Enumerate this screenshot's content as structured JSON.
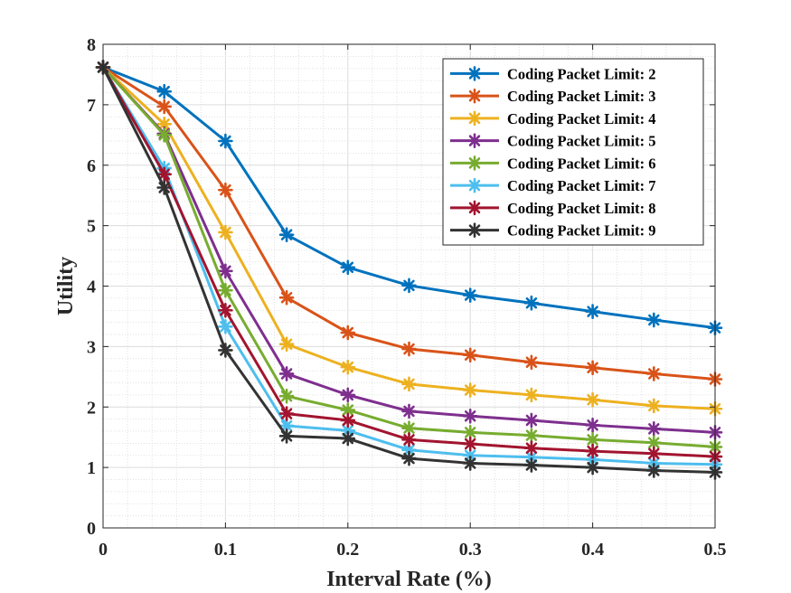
{
  "chart_data": {
    "type": "line",
    "title": "",
    "xlabel": "Interval Rate (%)",
    "ylabel": "Utility",
    "xlim": [
      0,
      0.5
    ],
    "ylim": [
      0,
      8
    ],
    "xticks": [
      0,
      0.1,
      0.2,
      0.3,
      0.4,
      0.5
    ],
    "xtick_labels": [
      "0",
      "0.1",
      "0.2",
      "0.3",
      "0.4",
      "0.5"
    ],
    "yticks": [
      0,
      1,
      2,
      3,
      4,
      5,
      6,
      7,
      8
    ],
    "ytick_labels": [
      "0",
      "1",
      "2",
      "3",
      "4",
      "5",
      "6",
      "7",
      "8"
    ],
    "grid": true,
    "minor_grid": true,
    "legend_position": "top-right",
    "marker": "asterisk",
    "x": [
      0,
      0.05,
      0.1,
      0.15,
      0.2,
      0.25,
      0.3,
      0.35,
      0.4,
      0.45,
      0.5
    ],
    "series": [
      {
        "name": "Coding Packet Limit: 2",
        "color": "#0072BD",
        "values": [
          7.62,
          7.22,
          6.4,
          4.85,
          4.31,
          4.01,
          3.85,
          3.72,
          3.58,
          3.44,
          3.31
        ]
      },
      {
        "name": "Coding Packet Limit: 3",
        "color": "#D95319",
        "values": [
          7.62,
          6.97,
          5.59,
          3.81,
          3.23,
          2.96,
          2.86,
          2.74,
          2.65,
          2.55,
          2.46
        ]
      },
      {
        "name": "Coding Packet Limit: 4",
        "color": "#EDB120",
        "values": [
          7.62,
          6.68,
          4.89,
          3.04,
          2.66,
          2.38,
          2.28,
          2.2,
          2.12,
          2.02,
          1.97
        ]
      },
      {
        "name": "Coding Packet Limit: 5",
        "color": "#7E2F8E",
        "values": [
          7.62,
          6.52,
          4.25,
          2.55,
          2.2,
          1.93,
          1.85,
          1.78,
          1.7,
          1.64,
          1.58
        ]
      },
      {
        "name": "Coding Packet Limit: 6",
        "color": "#77AC30",
        "values": [
          7.62,
          6.5,
          3.93,
          2.18,
          1.95,
          1.65,
          1.58,
          1.53,
          1.46,
          1.41,
          1.34
        ]
      },
      {
        "name": "Coding Packet Limit: 7",
        "color": "#4DBEEE",
        "values": [
          7.62,
          5.95,
          3.33,
          1.69,
          1.61,
          1.29,
          1.2,
          1.17,
          1.13,
          1.07,
          1.05
        ]
      },
      {
        "name": "Coding Packet Limit: 8",
        "color": "#A2142F",
        "values": [
          7.62,
          5.85,
          3.6,
          1.89,
          1.78,
          1.46,
          1.39,
          1.32,
          1.27,
          1.23,
          1.18
        ]
      },
      {
        "name": "Coding Packet Limit: 9",
        "color": "#333333",
        "values": [
          7.62,
          5.63,
          2.94,
          1.52,
          1.48,
          1.15,
          1.07,
          1.04,
          1.0,
          0.95,
          0.92
        ]
      }
    ]
  }
}
